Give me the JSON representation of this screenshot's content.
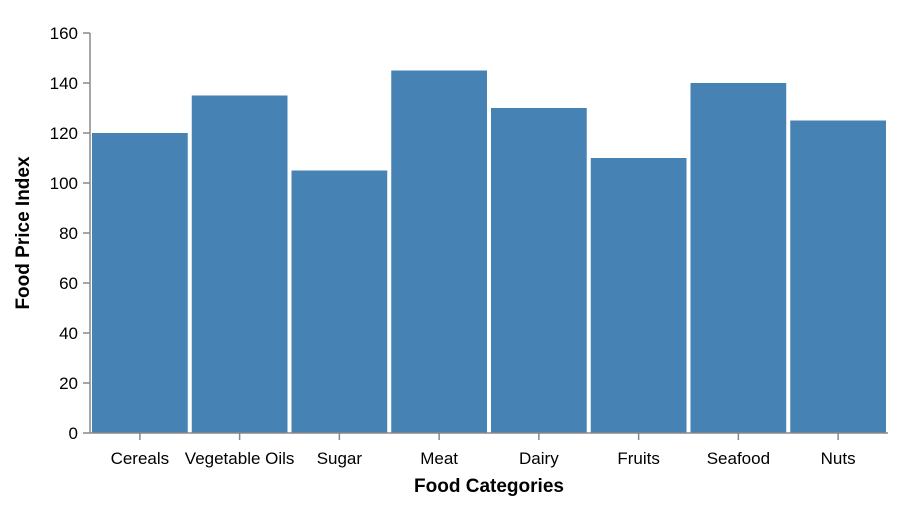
{
  "chart_data": {
    "type": "bar",
    "categories": [
      "Cereals",
      "Vegetable Oils",
      "Sugar",
      "Meat",
      "Dairy",
      "Fruits",
      "Seafood",
      "Nuts"
    ],
    "values": [
      120,
      135,
      105,
      145,
      130,
      110,
      140,
      125
    ],
    "xlabel": "Food Categories",
    "ylabel": "Food Price Index",
    "ylim": [
      0,
      160
    ],
    "yticks": [
      0,
      20,
      40,
      60,
      80,
      100,
      120,
      140,
      160
    ],
    "bar_color": "#4682b4",
    "grid": false,
    "legend": "none"
  }
}
